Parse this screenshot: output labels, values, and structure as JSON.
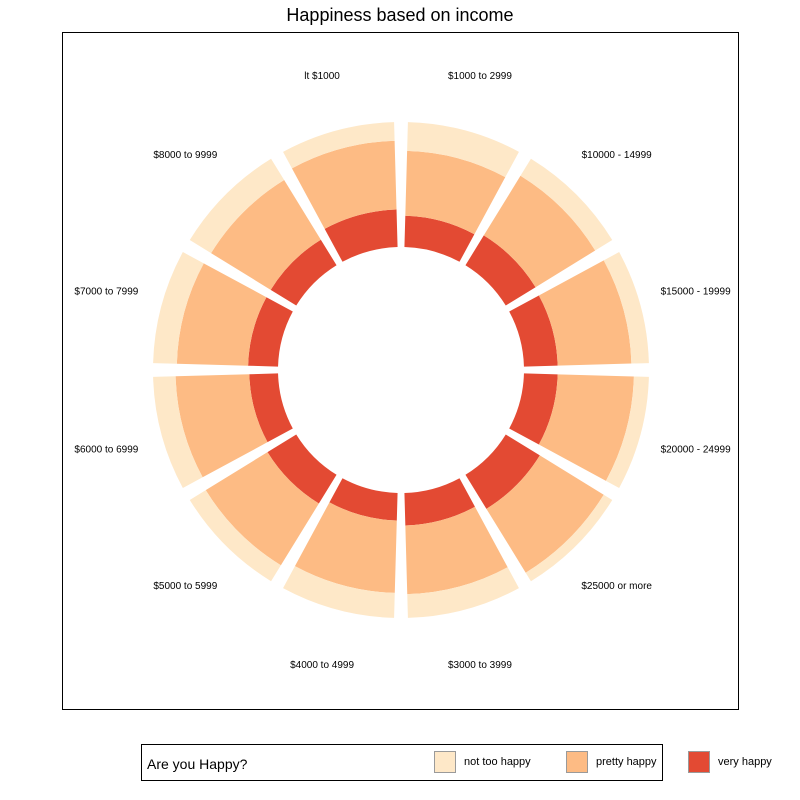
{
  "chart_data": {
    "type": "bar",
    "subtype": "stacked-radial",
    "title": "Happiness based on income",
    "categories": [
      "$1000 to 2999",
      "$10000 - 14999",
      "$15000 - 19999",
      "$20000 - 24999",
      "$25000 or more",
      "$3000 to 3999",
      "$4000 to 4999",
      "$5000 to 5999",
      "$6000 to 6999",
      "$7000 to 7999",
      "$8000 to 9999",
      "lt $1000"
    ],
    "series": [
      {
        "name": "very happy",
        "color": "#e34a33",
        "values": [
          0.25,
          0.28,
          0.27,
          0.27,
          0.32,
          0.26,
          0.22,
          0.27,
          0.23,
          0.24,
          0.24,
          0.3
        ]
      },
      {
        "name": "pretty happy",
        "color": "#fdbb84",
        "values": [
          0.52,
          0.56,
          0.59,
          0.61,
          0.6,
          0.55,
          0.58,
          0.58,
          0.59,
          0.57,
          0.56,
          0.55
        ]
      },
      {
        "name": "not too happy",
        "color": "#fee8c8",
        "values": [
          0.23,
          0.16,
          0.14,
          0.12,
          0.08,
          0.19,
          0.2,
          0.15,
          0.18,
          0.19,
          0.2,
          0.15
        ]
      }
    ],
    "ylim": [
      0,
      1
    ],
    "legend": {
      "title": "Are you Happy?",
      "position": "bottom",
      "order": [
        "not too happy",
        "pretty happy",
        "very happy"
      ]
    },
    "grid": false
  }
}
